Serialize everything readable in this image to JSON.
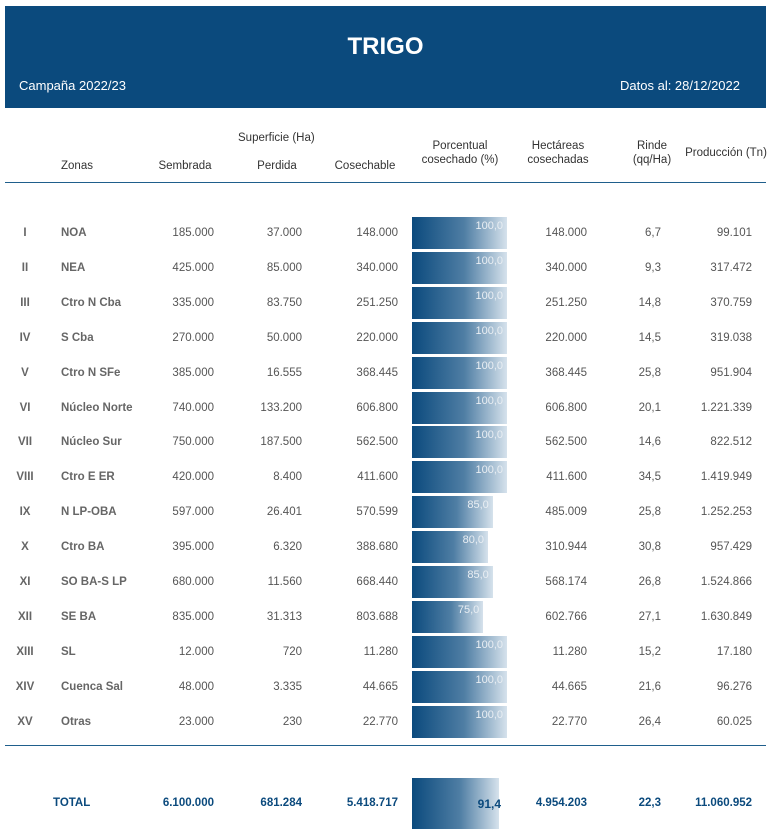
{
  "header": {
    "title": "TRIGO",
    "campaign": "Campaña 2022/23",
    "date": "Datos al: 28/12/2022"
  },
  "columns": {
    "zonas": "Zonas",
    "superficie": "Superficie (Ha)",
    "sembrada": "Sembrada",
    "perdida": "Perdida",
    "cosechable": "Cosechable",
    "porcentual_1": "Porcentual",
    "porcentual_2": "cosechado (%)",
    "hectareas_1": "Hectáreas",
    "hectareas_2": "cosechadas",
    "rinde_1": "Rinde",
    "rinde_2": "(qq/Ha)",
    "produccion": "Producción (Tn)"
  },
  "rows": [
    {
      "num": "I",
      "zona": "NOA",
      "sembrada": "185.000",
      "perdida": "37.000",
      "cosechable": "148.000",
      "pct": "100,0",
      "pct_value": 100,
      "hectareas": "148.000",
      "rinde": "6,7",
      "produccion": "99.101"
    },
    {
      "num": "II",
      "zona": "NEA",
      "sembrada": "425.000",
      "perdida": "85.000",
      "cosechable": "340.000",
      "pct": "100,0",
      "pct_value": 100,
      "hectareas": "340.000",
      "rinde": "9,3",
      "produccion": "317.472"
    },
    {
      "num": "III",
      "zona": "Ctro N Cba",
      "sembrada": "335.000",
      "perdida": "83.750",
      "cosechable": "251.250",
      "pct": "100,0",
      "pct_value": 100,
      "hectareas": "251.250",
      "rinde": "14,8",
      "produccion": "370.759"
    },
    {
      "num": "IV",
      "zona": "S Cba",
      "sembrada": "270.000",
      "perdida": "50.000",
      "cosechable": "220.000",
      "pct": "100,0",
      "pct_value": 100,
      "hectareas": "220.000",
      "rinde": "14,5",
      "produccion": "319.038"
    },
    {
      "num": "V",
      "zona": "Ctro N SFe",
      "sembrada": "385.000",
      "perdida": "16.555",
      "cosechable": "368.445",
      "pct": "100,0",
      "pct_value": 100,
      "hectareas": "368.445",
      "rinde": "25,8",
      "produccion": "951.904"
    },
    {
      "num": "VI",
      "zona": "Núcleo Norte",
      "sembrada": "740.000",
      "perdida": "133.200",
      "cosechable": "606.800",
      "pct": "100,0",
      "pct_value": 100,
      "hectareas": "606.800",
      "rinde": "20,1",
      "produccion": "1.221.339"
    },
    {
      "num": "VII",
      "zona": "Núcleo Sur",
      "sembrada": "750.000",
      "perdida": "187.500",
      "cosechable": "562.500",
      "pct": "100,0",
      "pct_value": 100,
      "hectareas": "562.500",
      "rinde": "14,6",
      "produccion": "822.512"
    },
    {
      "num": "VIII",
      "zona": "Ctro E ER",
      "sembrada": "420.000",
      "perdida": "8.400",
      "cosechable": "411.600",
      "pct": "100,0",
      "pct_value": 100,
      "hectareas": "411.600",
      "rinde": "34,5",
      "produccion": "1.419.949"
    },
    {
      "num": "IX",
      "zona": "N LP-OBA",
      "sembrada": "597.000",
      "perdida": "26.401",
      "cosechable": "570.599",
      "pct": "85,0",
      "pct_value": 85,
      "hectareas": "485.009",
      "rinde": "25,8",
      "produccion": "1.252.253"
    },
    {
      "num": "X",
      "zona": "Ctro BA",
      "sembrada": "395.000",
      "perdida": "6.320",
      "cosechable": "388.680",
      "pct": "80,0",
      "pct_value": 80,
      "hectareas": "310.944",
      "rinde": "30,8",
      "produccion": "957.429"
    },
    {
      "num": "XI",
      "zona": "SO BA-S LP",
      "sembrada": "680.000",
      "perdida": "11.560",
      "cosechable": "668.440",
      "pct": "85,0",
      "pct_value": 85,
      "hectareas": "568.174",
      "rinde": "26,8",
      "produccion": "1.524.866"
    },
    {
      "num": "XII",
      "zona": "SE BA",
      "sembrada": "835.000",
      "perdida": "31.313",
      "cosechable": "803.688",
      "pct": "75,0",
      "pct_value": 75,
      "hectareas": "602.766",
      "rinde": "27,1",
      "produccion": "1.630.849"
    },
    {
      "num": "XIII",
      "zona": "SL",
      "sembrada": "12.000",
      "perdida": "720",
      "cosechable": "11.280",
      "pct": "100,0",
      "pct_value": 100,
      "hectareas": "11.280",
      "rinde": "15,2",
      "produccion": "17.180"
    },
    {
      "num": "XIV",
      "zona": "Cuenca Sal",
      "sembrada": "48.000",
      "perdida": "3.335",
      "cosechable": "44.665",
      "pct": "100,0",
      "pct_value": 100,
      "hectareas": "44.665",
      "rinde": "21,6",
      "produccion": "96.276"
    },
    {
      "num": "XV",
      "zona": "Otras",
      "sembrada": "23.000",
      "perdida": "230",
      "cosechable": "22.770",
      "pct": "100,0",
      "pct_value": 100,
      "hectareas": "22.770",
      "rinde": "26,4",
      "produccion": "60.025"
    }
  ],
  "total": {
    "label": "TOTAL",
    "sembrada": "6.100.000",
    "perdida": "681.284",
    "cosechable": "5.418.717",
    "pct": "91,4",
    "pct_value": 91.4,
    "hectareas": "4.954.203",
    "rinde": "22,3",
    "produccion": "11.060.952"
  }
}
